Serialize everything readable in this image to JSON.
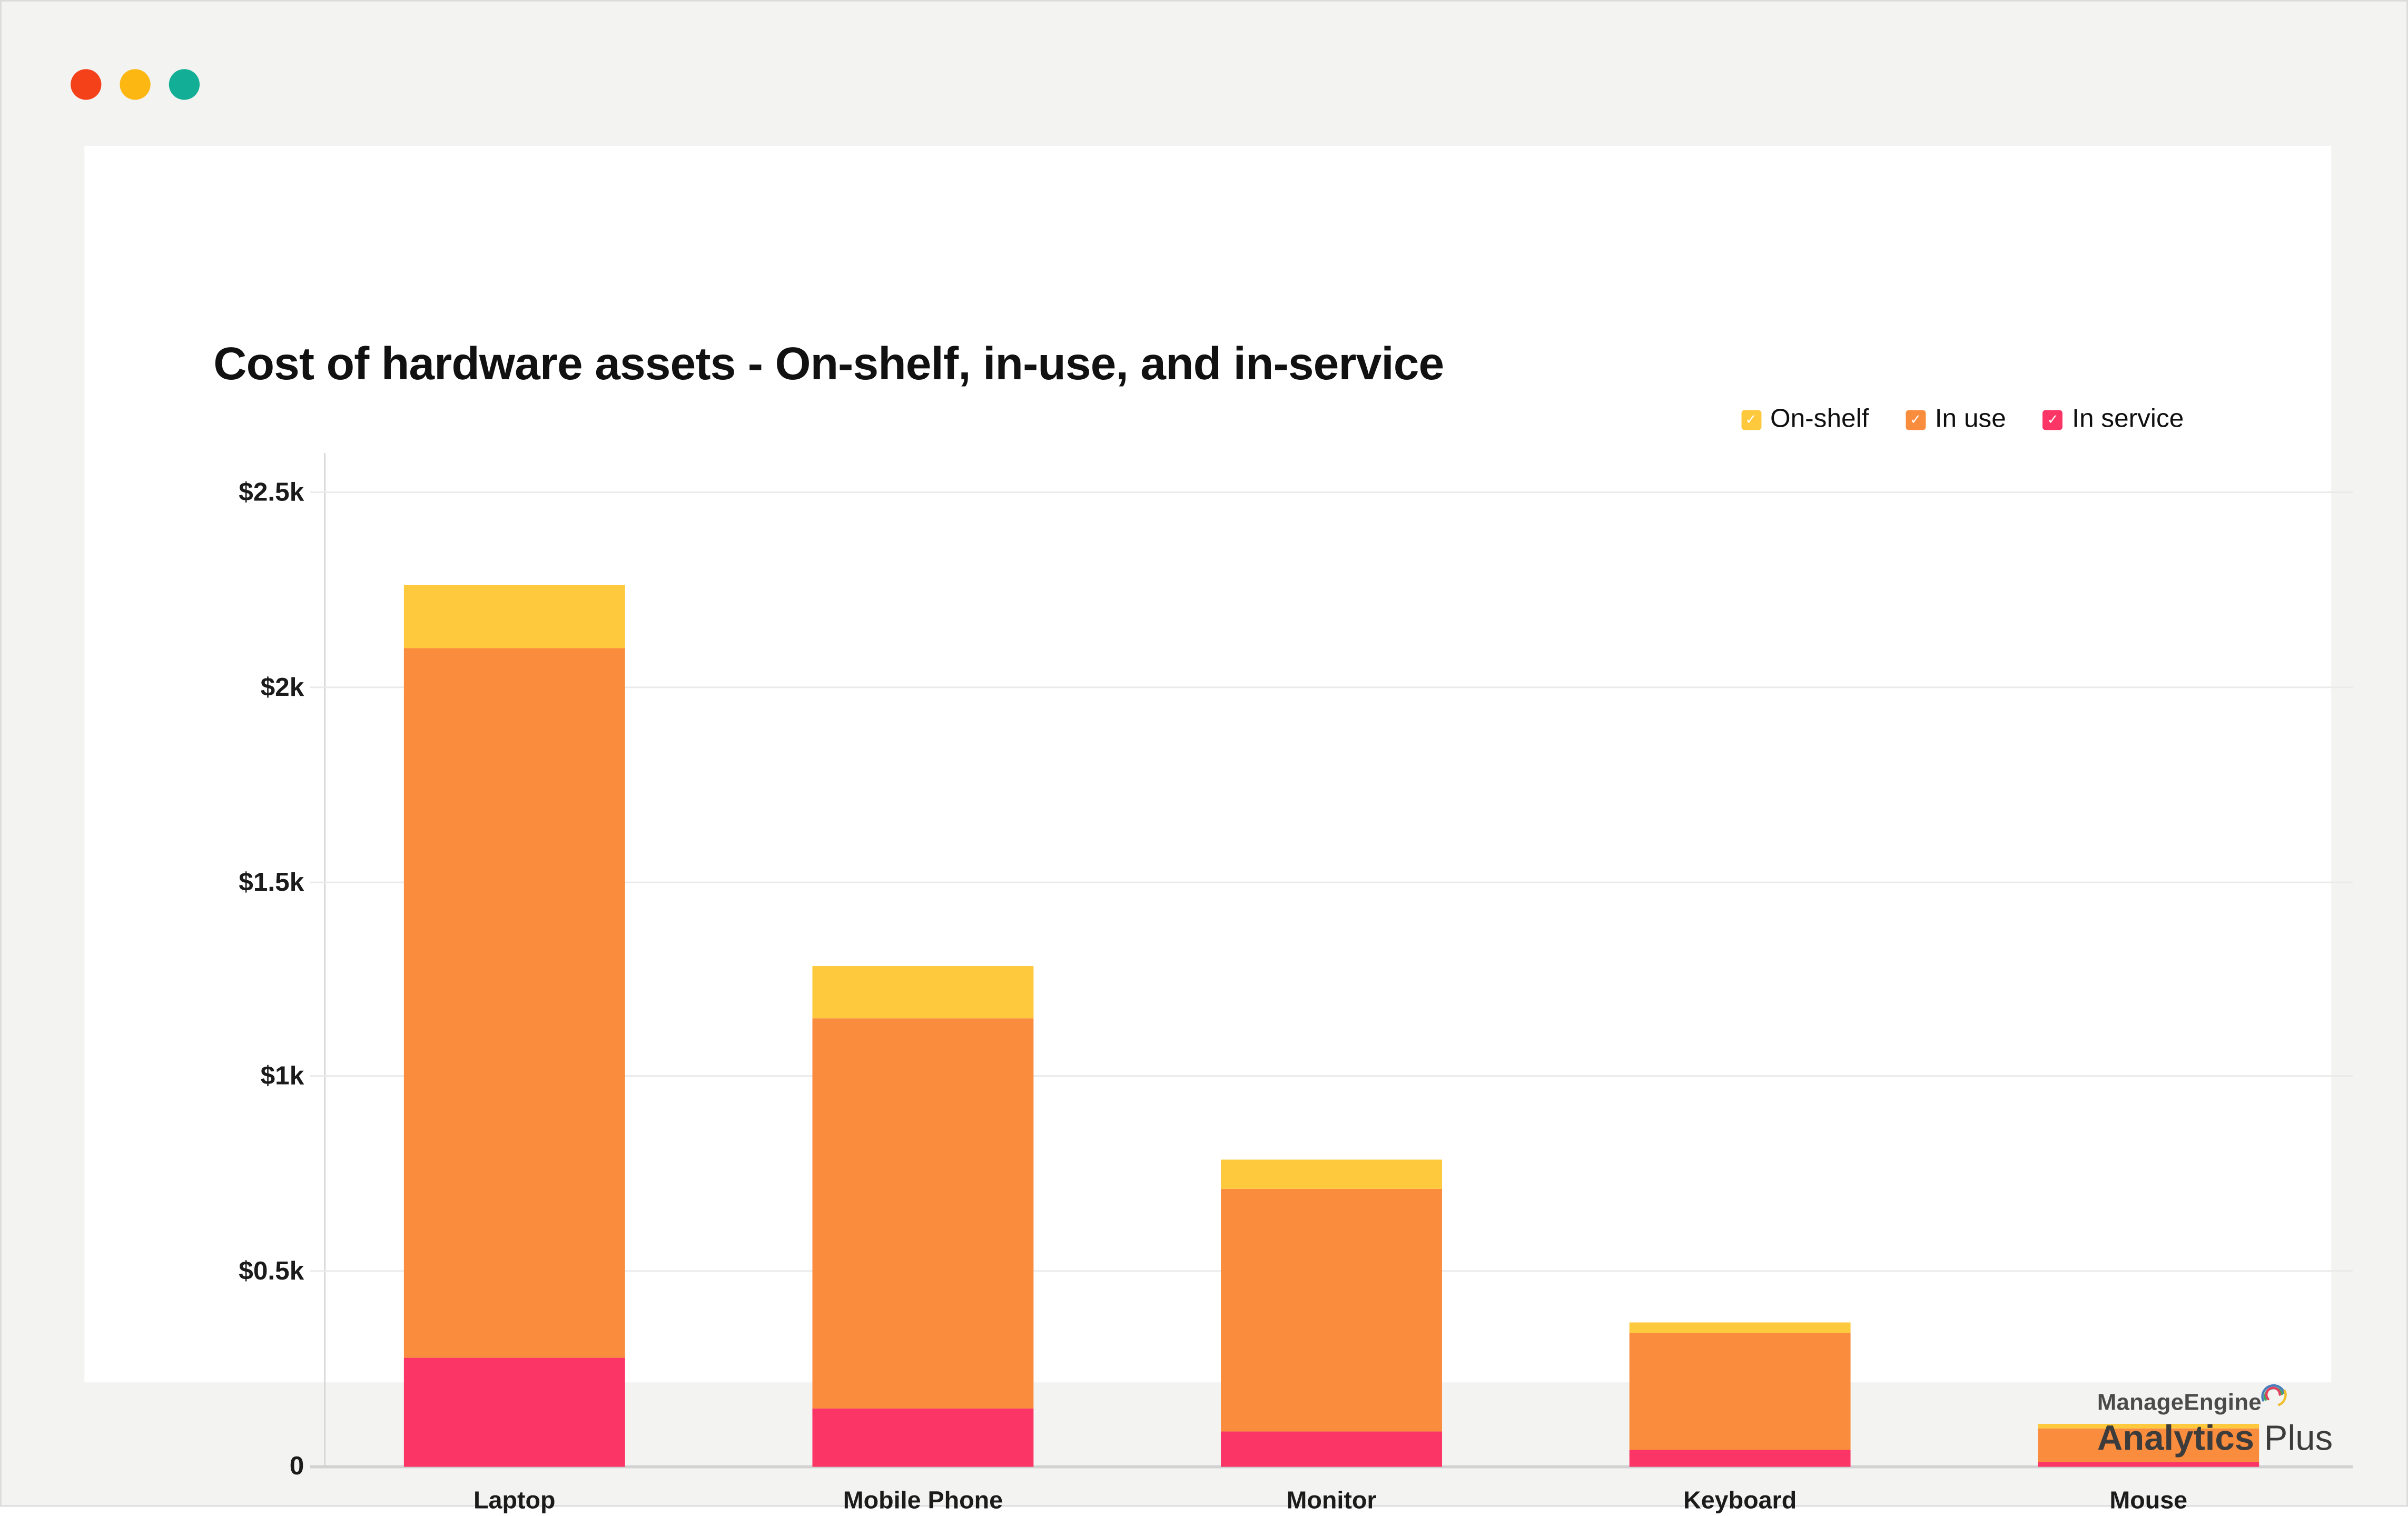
{
  "window": {
    "dots": [
      {
        "name": "window-dot-red",
        "color": "#f4411a"
      },
      {
        "name": "window-dot-yellow",
        "color": "#fcb713"
      },
      {
        "name": "window-dot-teal",
        "color": "#12ae96"
      }
    ]
  },
  "chart_data": {
    "type": "bar",
    "stacked": true,
    "title": "Cost of hardware assets - On-shelf, in-use, and in-service",
    "categories": [
      "Laptop",
      "Mobile Phone",
      "Monitor",
      "Keyboard",
      "Mouse"
    ],
    "series": [
      {
        "name": "On-shelf",
        "color": "#ffc93d",
        "values": [
          165,
          135,
          75,
          25,
          12
        ]
      },
      {
        "name": "In use",
        "color": "#fa8c3e",
        "values": [
          1820,
          1000,
          625,
          300,
          88
        ]
      },
      {
        "name": "In service",
        "color": "#fb3566",
        "values": [
          280,
          150,
          90,
          45,
          10
        ]
      }
    ],
    "stack_order_bottom_to_top": [
      "In service",
      "In use",
      "On-shelf"
    ],
    "ylim": [
      0,
      2500
    ],
    "yticks": [
      {
        "value": 2500,
        "label": "$2.5k"
      },
      {
        "value": 2000,
        "label": "$2k"
      },
      {
        "value": 1500,
        "label": "$1.5k"
      },
      {
        "value": 1000,
        "label": "$1k"
      },
      {
        "value": 500,
        "label": "$0.5k"
      },
      {
        "value": 0,
        "label": "0"
      }
    ],
    "xlabel": "",
    "ylabel": "",
    "grid": true,
    "legend_position": "top-right"
  },
  "legend": {
    "check_glyph": "✓"
  },
  "footer": {
    "brand_line1": "ManageEngine",
    "brand_line2_bold": "Analytics",
    "brand_line2_regular": "Plus"
  }
}
